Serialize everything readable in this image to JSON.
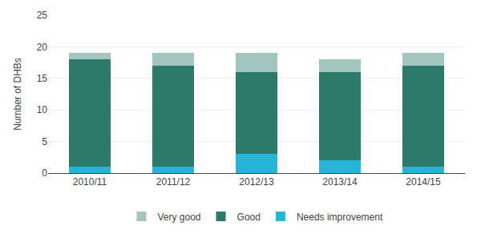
{
  "chart_data": {
    "type": "bar",
    "stacked": true,
    "categories": [
      "2010/11",
      "2011/12",
      "2012/13",
      "2013/14",
      "2014/15"
    ],
    "series": [
      {
        "name": "Needs improvement",
        "color": "#27b5d5",
        "values": [
          1,
          1,
          3,
          2,
          1
        ]
      },
      {
        "name": "Good",
        "color": "#2b7a6a",
        "values": [
          17,
          16,
          13,
          14,
          16
        ]
      },
      {
        "name": "Very good",
        "color": "#a3c5bf",
        "values": [
          1,
          2,
          3,
          2,
          2
        ]
      }
    ],
    "ylabel": "Number of DHBs",
    "ylim": [
      0,
      25
    ],
    "yticks": [
      0,
      5,
      10,
      15,
      20,
      25
    ],
    "grid": true,
    "legend": "bottom"
  }
}
